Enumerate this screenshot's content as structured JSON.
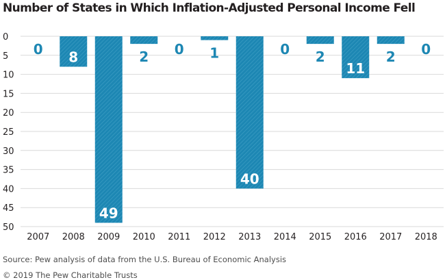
{
  "colors": {
    "bar": "#1d87b3",
    "hatch": "#3f9fc6",
    "label_on_bar": "#ffffff",
    "label_off_bar": "#1d87b3",
    "grid": "#d9d9d9"
  },
  "footer": {
    "source": "Source: Pew analysis of data from the U.S. Bureau of Economic Analysis",
    "copyright": "© 2019 The Pew Charitable Trusts"
  },
  "chart_data": {
    "type": "bar",
    "title": "Number of States in Which Inflation-Adjusted Personal Income Fell",
    "xlabel": "",
    "ylabel": "",
    "categories": [
      "2007",
      "2008",
      "2009",
      "2010",
      "2011",
      "2012",
      "2013",
      "2014",
      "2015",
      "2016",
      "2017",
      "2018"
    ],
    "values": [
      0,
      8,
      49,
      2,
      0,
      1,
      40,
      0,
      2,
      11,
      2,
      0
    ],
    "data_labels": [
      "0",
      "8",
      "49",
      "2",
      "0",
      "1",
      "40",
      "0",
      "2",
      "11",
      "2",
      "0"
    ],
    "ylim": [
      0,
      50
    ],
    "y_inverted": true,
    "yticks": [
      0,
      5,
      10,
      15,
      20,
      25,
      30,
      35,
      40,
      45,
      50
    ],
    "grid": true
  }
}
